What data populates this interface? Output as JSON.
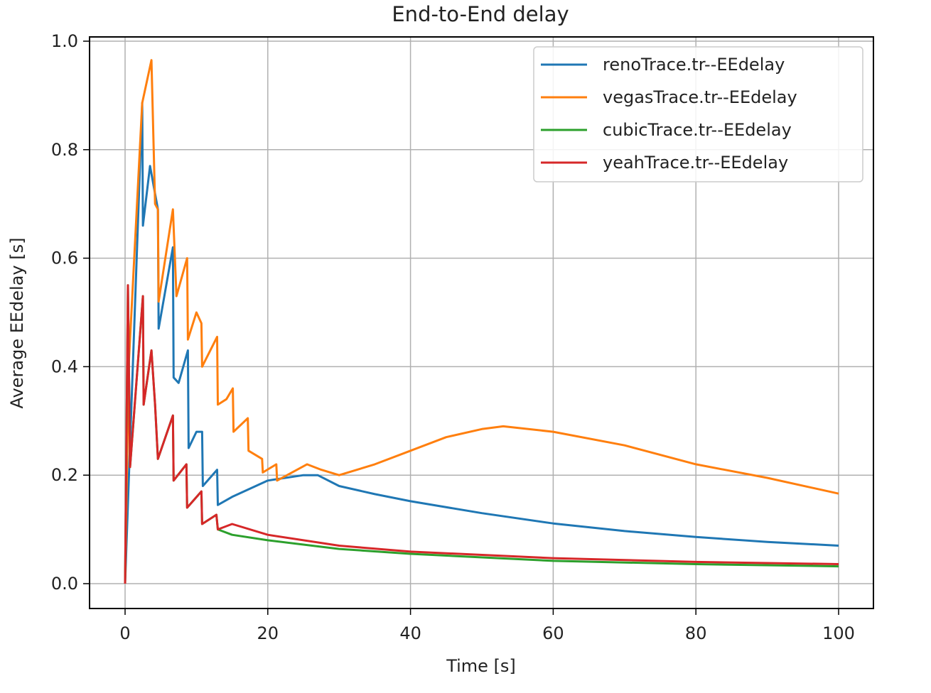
{
  "chart_data": {
    "type": "line",
    "title": "End-to-End delay",
    "xlabel": "Time [s]",
    "ylabel": "Average EEdelay [s]",
    "xlim": [
      -5,
      105
    ],
    "ylim": [
      -0.05,
      1.01
    ],
    "xticks": [
      0,
      20,
      40,
      60,
      80,
      100
    ],
    "yticks": [
      0.0,
      0.2,
      0.4,
      0.6,
      0.8,
      1.0
    ],
    "xtick_labels": [
      "0",
      "20",
      "40",
      "60",
      "80",
      "100"
    ],
    "ytick_labels": [
      "0.0",
      "0.2",
      "0.4",
      "0.6",
      "0.8",
      "1.0"
    ],
    "grid": true,
    "legend_position": "upper right",
    "series": [
      {
        "name": "renoTrace.tr--EEdelay",
        "color": "#1f77b4",
        "x": [
          0,
          2.4,
          2.5,
          3.5,
          4.6,
          4.7,
          6.7,
          6.8,
          7.5,
          8.8,
          8.9,
          10.0,
          10.8,
          10.9,
          12.9,
          13.0,
          15.0,
          20,
          25,
          27,
          30,
          35,
          40,
          50,
          60,
          70,
          80,
          90,
          100
        ],
        "y": [
          0,
          0.886,
          0.66,
          0.77,
          0.69,
          0.47,
          0.62,
          0.38,
          0.37,
          0.43,
          0.25,
          0.28,
          0.28,
          0.18,
          0.21,
          0.145,
          0.16,
          0.19,
          0.2,
          0.2,
          0.18,
          0.165,
          0.152,
          0.13,
          0.111,
          0.097,
          0.086,
          0.077,
          0.07
        ]
      },
      {
        "name": "vegasTrace.tr--EEdelay",
        "color": "#ff7f0e",
        "x": [
          0,
          0.5,
          2.4,
          3.7,
          4.2,
          4.6,
          4.7,
          6.7,
          7.2,
          8.7,
          8.8,
          10.0,
          10.7,
          10.8,
          12.9,
          13.0,
          14.2,
          15.1,
          15.2,
          17.2,
          17.3,
          19.2,
          19.3,
          21.2,
          21.3,
          25.5,
          27.5,
          30,
          35,
          40,
          45,
          50,
          53,
          60,
          70,
          80,
          90,
          100
        ],
        "y": [
          0,
          0.4,
          0.886,
          0.965,
          0.7,
          0.69,
          0.52,
          0.69,
          0.53,
          0.6,
          0.45,
          0.5,
          0.48,
          0.4,
          0.455,
          0.33,
          0.34,
          0.36,
          0.28,
          0.305,
          0.245,
          0.23,
          0.205,
          0.22,
          0.19,
          0.22,
          0.21,
          0.2,
          0.22,
          0.245,
          0.27,
          0.285,
          0.29,
          0.28,
          0.255,
          0.22,
          0.195,
          0.166
        ]
      },
      {
        "name": "cubicTrace.tr--EEdelay",
        "color": "#2ca02c",
        "x": [
          0,
          0.4,
          0.7,
          2.5,
          2.6,
          3.7,
          4.2,
          4.6,
          6.7,
          6.8,
          8.6,
          8.7,
          10.7,
          10.8,
          12.8,
          13.0,
          15,
          20,
          30,
          40,
          60,
          80,
          100
        ],
        "y": [
          0,
          0.55,
          0.215,
          0.53,
          0.33,
          0.43,
          0.33,
          0.23,
          0.31,
          0.19,
          0.22,
          0.14,
          0.17,
          0.11,
          0.127,
          0.1,
          0.09,
          0.08,
          0.064,
          0.055,
          0.042,
          0.036,
          0.032
        ]
      },
      {
        "name": "yeahTrace.tr--EEdelay",
        "color": "#d62728",
        "x": [
          0,
          0.4,
          0.7,
          2.5,
          2.6,
          3.7,
          4.2,
          4.6,
          6.7,
          6.8,
          8.6,
          8.7,
          10.7,
          10.8,
          12.8,
          13.0,
          15,
          20,
          30,
          40,
          60,
          80,
          100
        ],
        "y": [
          0,
          0.55,
          0.215,
          0.53,
          0.33,
          0.43,
          0.33,
          0.23,
          0.31,
          0.19,
          0.22,
          0.14,
          0.17,
          0.11,
          0.127,
          0.1,
          0.11,
          0.09,
          0.07,
          0.059,
          0.047,
          0.04,
          0.036
        ]
      }
    ]
  }
}
